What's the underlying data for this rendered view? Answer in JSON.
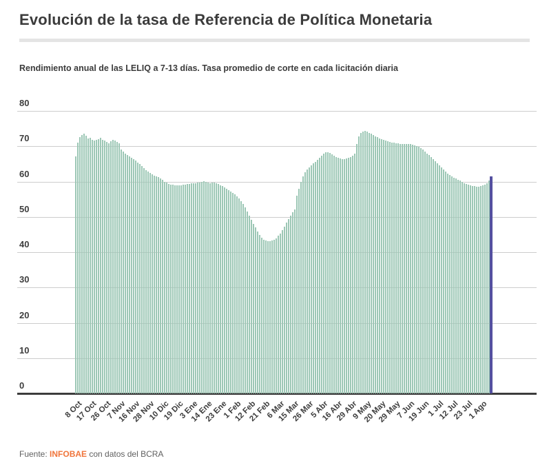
{
  "header": {
    "title": "Evolución de la tasa de Referencia de Política Monetaria",
    "subtitle": "Rendimiento anual de las LELIQ a 7-13 días. Tasa promedio de corte en cada licitación diaria"
  },
  "footer": {
    "prefix": "Fuente: ",
    "brand": "INFOBAE",
    "suffix": " con datos del BCRA"
  },
  "colors": {
    "bar_green": "#9cc7b5",
    "bar_highlight_purple": "#5450a0",
    "gridline": "#cccccc",
    "axis_line": "#3c3c3c",
    "text_dark": "#3b3b3b",
    "source_orange": "#f0753b",
    "divider_gray": "#e4e4e4"
  },
  "chart_data": {
    "type": "bar",
    "title": "Evolución de la tasa de Referencia de Política Monetaria",
    "subtitle": "Rendimiento anual de las LELIQ a 7-13 días. Tasa promedio de corte en cada licitación diaria",
    "ylabel": "",
    "xlabel": "",
    "ylim": [
      0,
      80
    ],
    "yticks": [
      0,
      10,
      20,
      30,
      40,
      50,
      60,
      70,
      80
    ],
    "grid": true,
    "legend": "none",
    "bar_color": "#9cc7b5",
    "highlight_last_bar": true,
    "highlight_color": "#5450a0",
    "x_tick_labels": [
      "8 Oct",
      "17 Oct",
      "26 Oct",
      "7 Nov",
      "16 Nov",
      "28 Nov",
      "10 Dic",
      "19 Dic",
      "3 Ene",
      "14 Ene",
      "23 Ene",
      "1 Feb",
      "12 Feb",
      "21 Feb",
      "6 Mar",
      "15 Mar",
      "26 Mar",
      "5 Abr",
      "16 Abr",
      "29 Abr",
      "9 May",
      "20 May",
      "29 May",
      "7 Jun",
      "19 Jun",
      "1 Jul",
      "12 Jul",
      "23 Jul",
      "1 Ago"
    ],
    "x_tick_indices": [
      2,
      9,
      16,
      23,
      30,
      37,
      44,
      51,
      58,
      65,
      72,
      79,
      86,
      93,
      100,
      107,
      114,
      121,
      128,
      135,
      142,
      149,
      156,
      163,
      170,
      177,
      184,
      191,
      198
    ],
    "values": [
      67.2,
      71.0,
      72.6,
      73.2,
      73.5,
      73.0,
      72.2,
      72.3,
      71.8,
      71.6,
      71.8,
      72.1,
      72.4,
      71.9,
      71.7,
      71.2,
      70.9,
      71.5,
      71.9,
      71.6,
      71.2,
      70.8,
      69.1,
      68.4,
      68.0,
      67.6,
      67.2,
      66.8,
      66.4,
      65.9,
      65.4,
      64.9,
      64.4,
      63.9,
      63.3,
      62.8,
      62.4,
      62.0,
      61.7,
      61.5,
      61.2,
      60.8,
      60.4,
      60.0,
      59.7,
      59.4,
      59.2,
      59.1,
      59.0,
      59.0,
      58.9,
      59.0,
      59.1,
      59.2,
      59.3,
      59.4,
      59.5,
      59.5,
      59.6,
      59.7,
      59.8,
      59.9,
      60.1,
      60.0,
      59.8,
      59.6,
      59.7,
      59.8,
      59.6,
      59.3,
      59.0,
      58.7,
      58.3,
      57.9,
      57.6,
      57.2,
      56.8,
      56.4,
      55.9,
      55.3,
      54.5,
      53.6,
      52.6,
      51.5,
      50.3,
      49.2,
      48.1,
      47.0,
      45.9,
      44.9,
      44.1,
      43.6,
      43.3,
      43.2,
      43.2,
      43.3,
      43.6,
      44.0,
      44.6,
      45.3,
      46.2,
      47.2,
      48.3,
      49.4,
      50.4,
      51.3,
      52.1,
      56.0,
      58.0,
      60.0,
      61.5,
      62.6,
      63.4,
      64.0,
      64.6,
      65.1,
      65.6,
      66.2,
      66.8,
      67.4,
      67.9,
      68.3,
      68.3,
      68.1,
      67.8,
      67.4,
      67.0,
      66.7,
      66.5,
      66.4,
      66.4,
      66.5,
      66.7,
      67.0,
      67.4,
      68.0,
      70.7,
      72.8,
      73.8,
      74.2,
      74.3,
      74.1,
      73.8,
      73.5,
      73.1,
      72.8,
      72.5,
      72.2,
      72.0,
      71.8,
      71.6,
      71.4,
      71.2,
      71.1,
      71.0,
      70.9,
      70.8,
      70.7,
      70.7,
      70.6,
      70.6,
      70.7,
      70.6,
      70.5,
      70.3,
      70.1,
      69.8,
      69.4,
      69.0,
      68.5,
      68.0,
      67.5,
      67.0,
      66.4,
      65.8,
      65.2,
      64.6,
      64.0,
      63.4,
      62.8,
      62.3,
      61.9,
      61.5,
      61.1,
      60.8,
      60.5,
      60.2,
      59.9,
      59.6,
      59.3,
      59.1,
      58.9,
      58.8,
      58.7,
      58.6,
      58.6,
      58.7,
      58.9,
      59.2,
      59.6,
      60.3,
      61.5
    ]
  }
}
